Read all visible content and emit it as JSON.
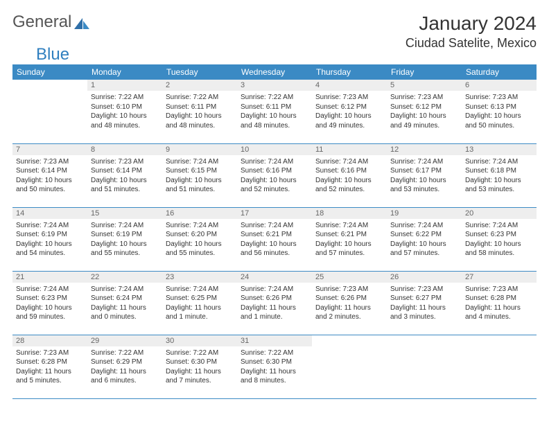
{
  "brand": {
    "part1": "General",
    "part2": "Blue"
  },
  "header": {
    "title": "January 2024",
    "location": "Ciudad Satelite, Mexico"
  },
  "colors": {
    "accent": "#3b8ac4",
    "header_row_bg": "#eeeeee",
    "text": "#333333"
  },
  "weekdays": [
    "Sunday",
    "Monday",
    "Tuesday",
    "Wednesday",
    "Thursday",
    "Friday",
    "Saturday"
  ],
  "layout": {
    "first_weekday_index": 1,
    "days_in_month": 31
  },
  "days": {
    "1": {
      "sunrise": "Sunrise: 7:22 AM",
      "sunset": "Sunset: 6:10 PM",
      "daylight": "Daylight: 10 hours and 48 minutes."
    },
    "2": {
      "sunrise": "Sunrise: 7:22 AM",
      "sunset": "Sunset: 6:11 PM",
      "daylight": "Daylight: 10 hours and 48 minutes."
    },
    "3": {
      "sunrise": "Sunrise: 7:22 AM",
      "sunset": "Sunset: 6:11 PM",
      "daylight": "Daylight: 10 hours and 48 minutes."
    },
    "4": {
      "sunrise": "Sunrise: 7:23 AM",
      "sunset": "Sunset: 6:12 PM",
      "daylight": "Daylight: 10 hours and 49 minutes."
    },
    "5": {
      "sunrise": "Sunrise: 7:23 AM",
      "sunset": "Sunset: 6:12 PM",
      "daylight": "Daylight: 10 hours and 49 minutes."
    },
    "6": {
      "sunrise": "Sunrise: 7:23 AM",
      "sunset": "Sunset: 6:13 PM",
      "daylight": "Daylight: 10 hours and 50 minutes."
    },
    "7": {
      "sunrise": "Sunrise: 7:23 AM",
      "sunset": "Sunset: 6:14 PM",
      "daylight": "Daylight: 10 hours and 50 minutes."
    },
    "8": {
      "sunrise": "Sunrise: 7:23 AM",
      "sunset": "Sunset: 6:14 PM",
      "daylight": "Daylight: 10 hours and 51 minutes."
    },
    "9": {
      "sunrise": "Sunrise: 7:24 AM",
      "sunset": "Sunset: 6:15 PM",
      "daylight": "Daylight: 10 hours and 51 minutes."
    },
    "10": {
      "sunrise": "Sunrise: 7:24 AM",
      "sunset": "Sunset: 6:16 PM",
      "daylight": "Daylight: 10 hours and 52 minutes."
    },
    "11": {
      "sunrise": "Sunrise: 7:24 AM",
      "sunset": "Sunset: 6:16 PM",
      "daylight": "Daylight: 10 hours and 52 minutes."
    },
    "12": {
      "sunrise": "Sunrise: 7:24 AM",
      "sunset": "Sunset: 6:17 PM",
      "daylight": "Daylight: 10 hours and 53 minutes."
    },
    "13": {
      "sunrise": "Sunrise: 7:24 AM",
      "sunset": "Sunset: 6:18 PM",
      "daylight": "Daylight: 10 hours and 53 minutes."
    },
    "14": {
      "sunrise": "Sunrise: 7:24 AM",
      "sunset": "Sunset: 6:19 PM",
      "daylight": "Daylight: 10 hours and 54 minutes."
    },
    "15": {
      "sunrise": "Sunrise: 7:24 AM",
      "sunset": "Sunset: 6:19 PM",
      "daylight": "Daylight: 10 hours and 55 minutes."
    },
    "16": {
      "sunrise": "Sunrise: 7:24 AM",
      "sunset": "Sunset: 6:20 PM",
      "daylight": "Daylight: 10 hours and 55 minutes."
    },
    "17": {
      "sunrise": "Sunrise: 7:24 AM",
      "sunset": "Sunset: 6:21 PM",
      "daylight": "Daylight: 10 hours and 56 minutes."
    },
    "18": {
      "sunrise": "Sunrise: 7:24 AM",
      "sunset": "Sunset: 6:21 PM",
      "daylight": "Daylight: 10 hours and 57 minutes."
    },
    "19": {
      "sunrise": "Sunrise: 7:24 AM",
      "sunset": "Sunset: 6:22 PM",
      "daylight": "Daylight: 10 hours and 57 minutes."
    },
    "20": {
      "sunrise": "Sunrise: 7:24 AM",
      "sunset": "Sunset: 6:23 PM",
      "daylight": "Daylight: 10 hours and 58 minutes."
    },
    "21": {
      "sunrise": "Sunrise: 7:24 AM",
      "sunset": "Sunset: 6:23 PM",
      "daylight": "Daylight: 10 hours and 59 minutes."
    },
    "22": {
      "sunrise": "Sunrise: 7:24 AM",
      "sunset": "Sunset: 6:24 PM",
      "daylight": "Daylight: 11 hours and 0 minutes."
    },
    "23": {
      "sunrise": "Sunrise: 7:24 AM",
      "sunset": "Sunset: 6:25 PM",
      "daylight": "Daylight: 11 hours and 1 minute."
    },
    "24": {
      "sunrise": "Sunrise: 7:24 AM",
      "sunset": "Sunset: 6:26 PM",
      "daylight": "Daylight: 11 hours and 1 minute."
    },
    "25": {
      "sunrise": "Sunrise: 7:23 AM",
      "sunset": "Sunset: 6:26 PM",
      "daylight": "Daylight: 11 hours and 2 minutes."
    },
    "26": {
      "sunrise": "Sunrise: 7:23 AM",
      "sunset": "Sunset: 6:27 PM",
      "daylight": "Daylight: 11 hours and 3 minutes."
    },
    "27": {
      "sunrise": "Sunrise: 7:23 AM",
      "sunset": "Sunset: 6:28 PM",
      "daylight": "Daylight: 11 hours and 4 minutes."
    },
    "28": {
      "sunrise": "Sunrise: 7:23 AM",
      "sunset": "Sunset: 6:28 PM",
      "daylight": "Daylight: 11 hours and 5 minutes."
    },
    "29": {
      "sunrise": "Sunrise: 7:22 AM",
      "sunset": "Sunset: 6:29 PM",
      "daylight": "Daylight: 11 hours and 6 minutes."
    },
    "30": {
      "sunrise": "Sunrise: 7:22 AM",
      "sunset": "Sunset: 6:30 PM",
      "daylight": "Daylight: 11 hours and 7 minutes."
    },
    "31": {
      "sunrise": "Sunrise: 7:22 AM",
      "sunset": "Sunset: 6:30 PM",
      "daylight": "Daylight: 11 hours and 8 minutes."
    }
  }
}
